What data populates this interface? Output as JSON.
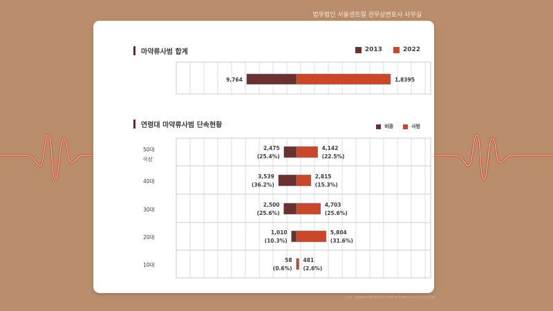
{
  "page": {
    "header": "법무법인 서울센트럴 권우상변호사 사무실",
    "footer": "※ 자료 : 대검찰청(대검찰청 범죄분석) / 마약류사범 단속현황 (2013년 및 2022년 기준)"
  },
  "colors": {
    "dark": "#6b3030",
    "orange": "#c9472a"
  },
  "chart_data": [
    {
      "type": "bar",
      "title": "마약류사범 합계",
      "series": [
        {
          "name": "2013",
          "values": [
            9764
          ]
        },
        {
          "name": "2022",
          "values": [
            18395
          ]
        }
      ],
      "labels_left": [
        "9,764"
      ],
      "labels_right": [
        "1,8395"
      ],
      "legend_position": "top-right"
    },
    {
      "type": "bar",
      "title": "연령대 마약류사범 단속현황",
      "categories": [
        "50대\n이상",
        "40대",
        "30대",
        "20대",
        "10대"
      ],
      "series": [
        {
          "name": "비중",
          "values": [
            2475,
            3539,
            2500,
            1010,
            58
          ]
        },
        {
          "name": "사범",
          "values": [
            4142,
            2815,
            4703,
            5804,
            481
          ]
        }
      ],
      "labels_left": [
        [
          "2,475",
          "(25.4%)"
        ],
        [
          "3,539",
          "(36.2%)"
        ],
        [
          "2,500",
          "(25.6%)"
        ],
        [
          "1,010",
          "(10.3%)"
        ],
        [
          "58",
          "(0.6%)"
        ]
      ],
      "labels_right": [
        [
          "4,142",
          "(22.5%)"
        ],
        [
          "2,815",
          "(15.3%)"
        ],
        [
          "4,703",
          "(25.6%)"
        ],
        [
          "5,804",
          "(31.6%)"
        ],
        [
          "481",
          "(2.6%)"
        ]
      ],
      "legend_position": "top-right"
    }
  ]
}
